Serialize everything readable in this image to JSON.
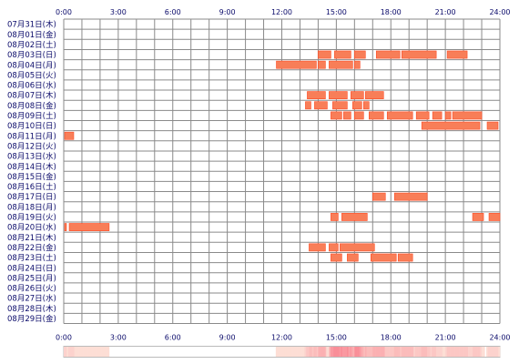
{
  "chart_data": {
    "type": "heatmap",
    "title": "",
    "xlabel": "",
    "ylabel": "",
    "x_range_hours": [
      0,
      24
    ],
    "x_ticks": [
      "0:00",
      "3:00",
      "6:00",
      "9:00",
      "12:00",
      "15:00",
      "18:00",
      "21:00",
      "24:00"
    ],
    "grid": true,
    "bar_color": "#f87e58",
    "bar_edge_color": "#ff4a22",
    "grid_color": "#8a8a8a",
    "summary_light_color": "#fde9de",
    "summary_dark_color": "#f98e98",
    "days": [
      {
        "label": "07月31日(木)",
        "intervals": []
      },
      {
        "label": "08月01日(金)",
        "intervals": []
      },
      {
        "label": "08月02日(土)",
        "intervals": []
      },
      {
        "label": "08月03日(日)",
        "intervals": [
          [
            14.0,
            14.7
          ],
          [
            14.9,
            15.8
          ],
          [
            16.0,
            16.6
          ],
          [
            17.2,
            18.5
          ],
          [
            18.6,
            20.5
          ],
          [
            21.1,
            22.2
          ]
        ]
      },
      {
        "label": "08月04日(月)",
        "intervals": [
          [
            11.7,
            13.9
          ],
          [
            14.0,
            14.4
          ],
          [
            14.6,
            15.9
          ],
          [
            16.0,
            16.3
          ]
        ]
      },
      {
        "label": "08月05日(火)",
        "intervals": []
      },
      {
        "label": "08月06日(水)",
        "intervals": []
      },
      {
        "label": "08月07日(木)",
        "intervals": [
          [
            13.4,
            14.4
          ],
          [
            14.6,
            15.6
          ],
          [
            15.8,
            16.5
          ],
          [
            16.6,
            17.6
          ]
        ]
      },
      {
        "label": "08月08日(金)",
        "intervals": [
          [
            13.3,
            13.6
          ],
          [
            13.8,
            14.5
          ],
          [
            14.8,
            15.6
          ],
          [
            15.9,
            16.4
          ],
          [
            16.5,
            16.8
          ]
        ]
      },
      {
        "label": "08月09日(土)",
        "intervals": [
          [
            14.7,
            15.3
          ],
          [
            15.4,
            15.8
          ],
          [
            16.0,
            16.5
          ],
          [
            16.8,
            17.6
          ],
          [
            17.8,
            19.2
          ],
          [
            19.4,
            20.1
          ],
          [
            20.3,
            20.8
          ],
          [
            21.0,
            21.3
          ],
          [
            21.4,
            23.0
          ]
        ]
      },
      {
        "label": "08月10日(日)",
        "intervals": [
          [
            19.7,
            22.9
          ],
          [
            23.3,
            23.9
          ]
        ]
      },
      {
        "label": "08月11日(月)",
        "intervals": [
          [
            0.05,
            0.55
          ]
        ]
      },
      {
        "label": "08月12日(火)",
        "intervals": []
      },
      {
        "label": "08月13日(水)",
        "intervals": []
      },
      {
        "label": "08月14日(木)",
        "intervals": []
      },
      {
        "label": "08月15日(金)",
        "intervals": []
      },
      {
        "label": "08月16日(土)",
        "intervals": []
      },
      {
        "label": "08月17日(日)",
        "intervals": [
          [
            17.0,
            17.7
          ],
          [
            18.2,
            20.0
          ]
        ]
      },
      {
        "label": "08月18日(月)",
        "intervals": []
      },
      {
        "label": "08月19日(火)",
        "intervals": [
          [
            14.7,
            15.1
          ],
          [
            15.3,
            16.7
          ],
          [
            22.5,
            23.1
          ],
          [
            23.4,
            24.0
          ]
        ]
      },
      {
        "label": "08月20日(水)",
        "intervals": [
          [
            0.05,
            0.15
          ],
          [
            0.3,
            2.5
          ]
        ]
      },
      {
        "label": "08月21日(木)",
        "intervals": []
      },
      {
        "label": "08月22日(金)",
        "intervals": [
          [
            13.5,
            14.4
          ],
          [
            14.6,
            15.1
          ],
          [
            15.2,
            17.1
          ]
        ]
      },
      {
        "label": "08月23日(土)",
        "intervals": [
          [
            14.7,
            15.3
          ],
          [
            15.6,
            16.2
          ],
          [
            16.9,
            18.3
          ],
          [
            18.4,
            19.2
          ]
        ]
      },
      {
        "label": "08月24日(日)",
        "intervals": []
      },
      {
        "label": "08月25日(月)",
        "intervals": []
      },
      {
        "label": "08月26日(火)",
        "intervals": []
      },
      {
        "label": "08月27日(水)",
        "intervals": []
      },
      {
        "label": "08月28日(木)",
        "intervals": []
      },
      {
        "label": "08月29日(金)",
        "intervals": []
      }
    ]
  }
}
